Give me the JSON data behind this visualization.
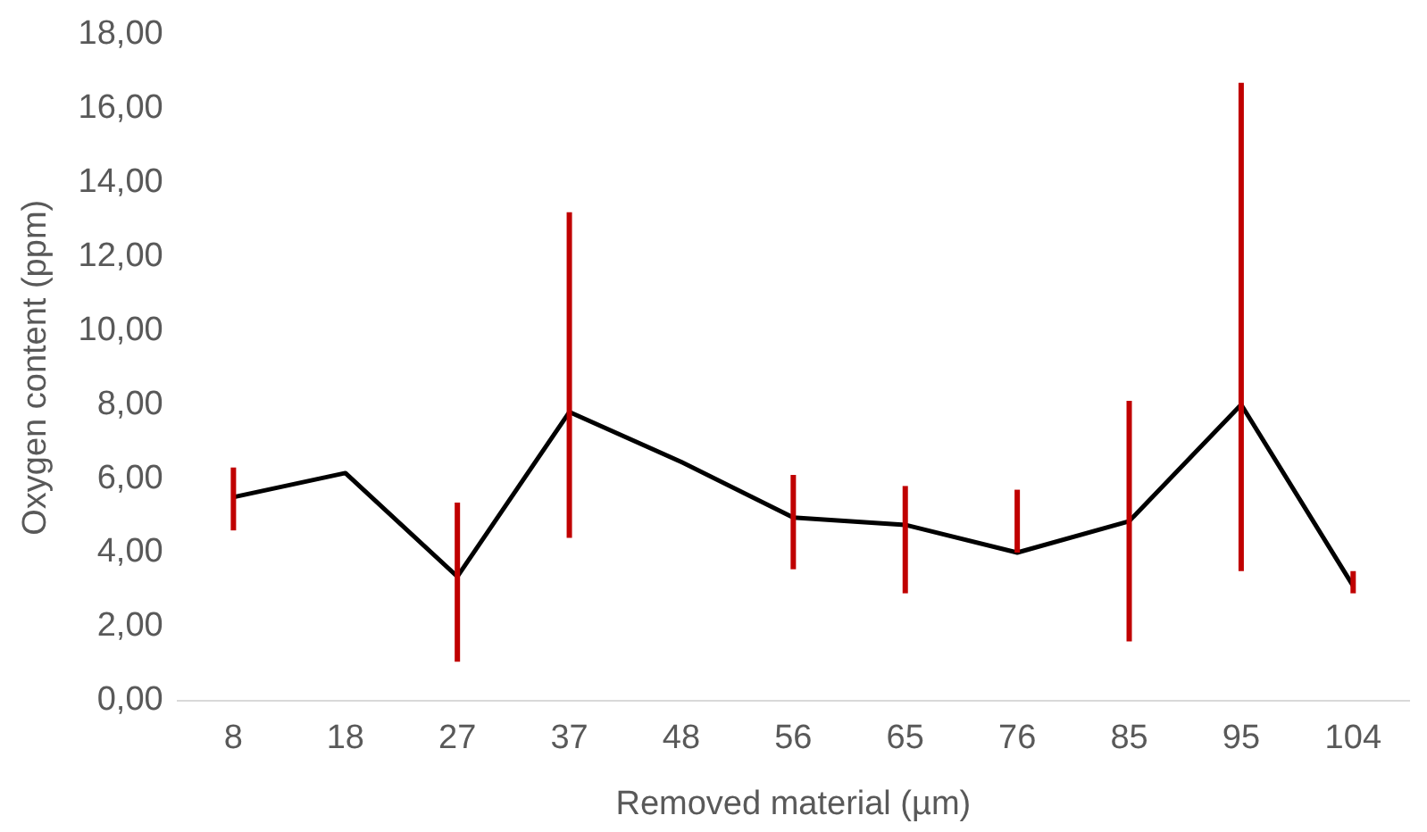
{
  "chart_data": {
    "type": "line",
    "xlabel": "Removed material (µm)",
    "ylabel": "Oxygen content (ppm)",
    "categories": [
      "8",
      "18",
      "27",
      "37",
      "48",
      "56",
      "65",
      "76",
      "85",
      "95",
      "104"
    ],
    "series": [
      {
        "color": "#000000",
        "values": [
          5.5,
          6.15,
          3.35,
          7.8,
          6.45,
          4.95,
          4.75,
          4.0,
          4.85,
          8.0,
          3.1
        ],
        "errors": [
          [
            4.6,
            6.3
          ],
          null,
          [
            1.05,
            5.35
          ],
          [
            4.4,
            13.2
          ],
          null,
          [
            3.55,
            6.1
          ],
          [
            2.9,
            5.8
          ],
          [
            4.0,
            5.7
          ],
          [
            1.6,
            8.1
          ],
          [
            3.5,
            16.7
          ],
          [
            2.9,
            3.5
          ]
        ]
      }
    ],
    "ylim": [
      0,
      18
    ],
    "yticks": [
      {
        "value": 0,
        "label": "0,00"
      },
      {
        "value": 2,
        "label": "2,00"
      },
      {
        "value": 4,
        "label": "4,00"
      },
      {
        "value": 6,
        "label": "6,00"
      },
      {
        "value": 8,
        "label": "8,00"
      },
      {
        "value": 10,
        "label": "10,00"
      },
      {
        "value": 12,
        "label": "12,00"
      },
      {
        "value": 14,
        "label": "14,00"
      },
      {
        "value": 16,
        "label": "16,00"
      },
      {
        "value": 18,
        "label": "18,00"
      }
    ],
    "grid": false,
    "legend": false,
    "marker": "none",
    "line_style": "solid"
  }
}
